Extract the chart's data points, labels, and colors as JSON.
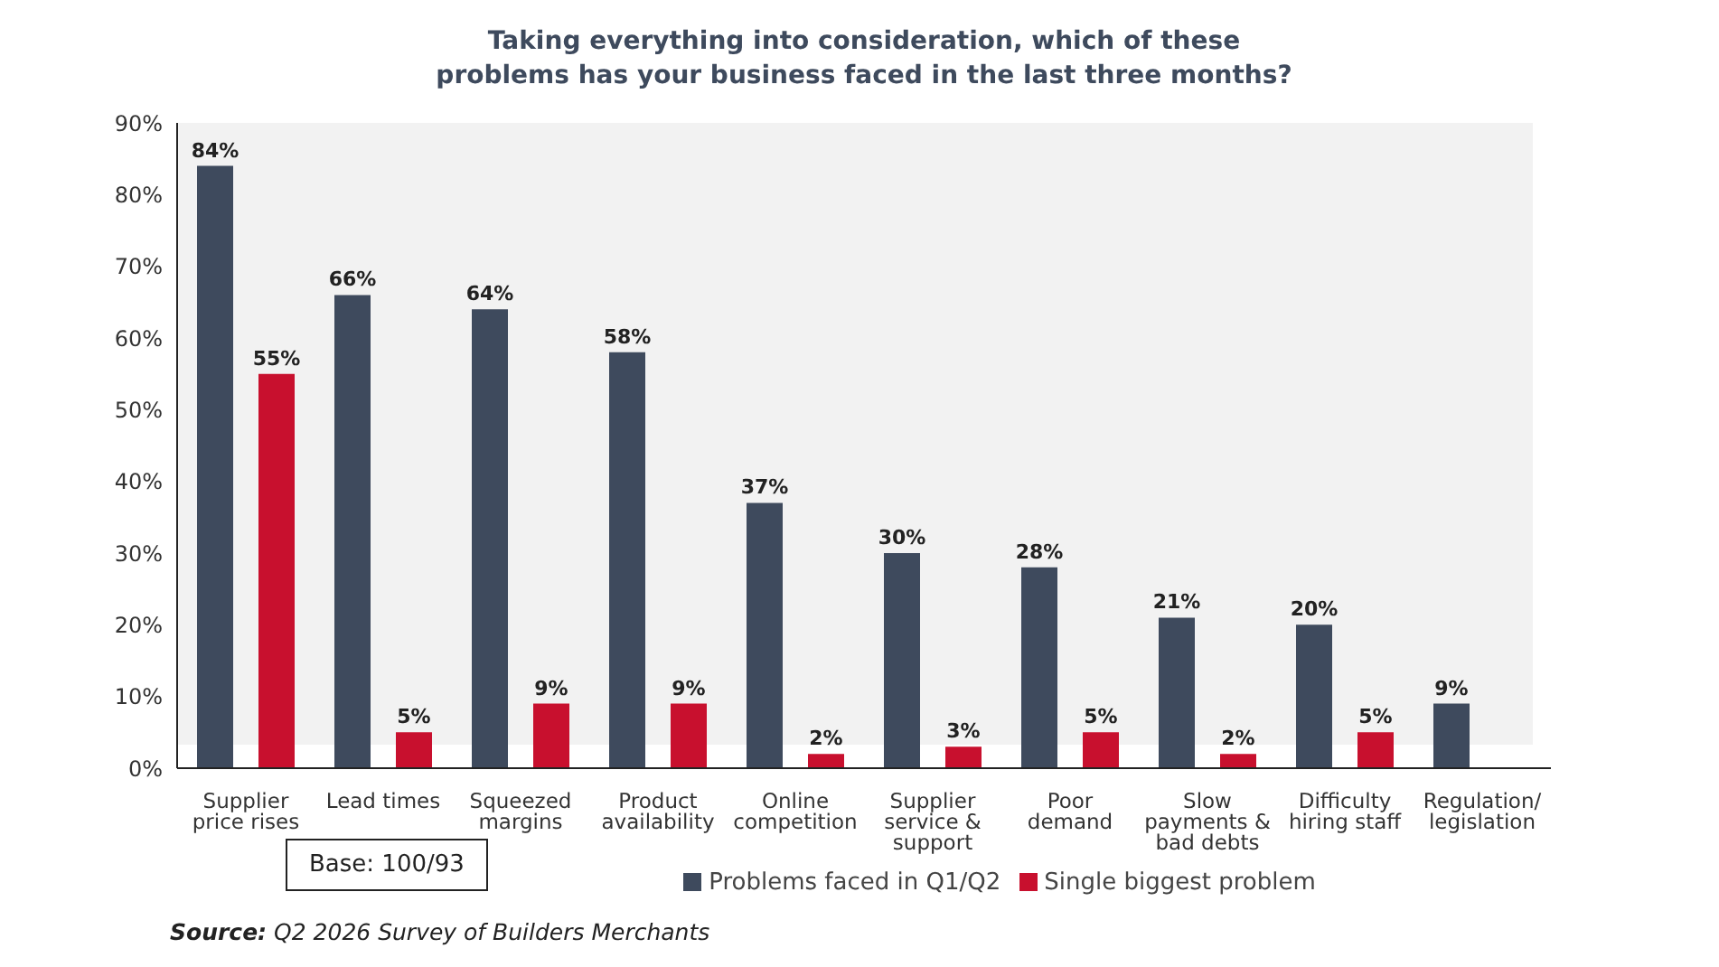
{
  "chart_data": {
    "type": "bar",
    "title": "Taking everything into consideration, which of these problems has your business faced in the last three months?",
    "categories": [
      "Supplier price rises",
      "Lead times",
      "Squeezed margins",
      "Product availability",
      "Online competition",
      "Supplier service & support",
      "Poor demand",
      "Slow payments & bad debts",
      "Difficulty hiring staff",
      "Regulation/ legislation"
    ],
    "series": [
      {
        "name": "Problems faced in Q1/Q2",
        "color": "#3e4a5d",
        "values": [
          84,
          66,
          64,
          58,
          37,
          30,
          28,
          21,
          20,
          9
        ],
        "value_labels": [
          "84%",
          "66%",
          "64%",
          "58%",
          "37%",
          "30%",
          "28%",
          "21%",
          "20%",
          "9%"
        ]
      },
      {
        "name": "Single biggest problem",
        "color": "#c8102e",
        "values": [
          55,
          5,
          9,
          9,
          2,
          3,
          5,
          2,
          5,
          null
        ],
        "value_labels": [
          "55%",
          "5%",
          "9%",
          "9%",
          "2%",
          "3%",
          "5%",
          "2%",
          "5%",
          null
        ]
      }
    ],
    "ylim": [
      0,
      90
    ],
    "yticks": [
      {
        "value": 0,
        "label": "0%"
      },
      {
        "value": 10,
        "label": "10%"
      },
      {
        "value": 20,
        "label": "20%"
      },
      {
        "value": 30,
        "label": "30%"
      },
      {
        "value": 40,
        "label": "40%"
      },
      {
        "value": 50,
        "label": "50%"
      },
      {
        "value": 60,
        "label": "60%"
      },
      {
        "value": 70,
        "label": "70%"
      },
      {
        "value": 80,
        "label": "80%"
      },
      {
        "value": 90,
        "label": "90%"
      }
    ],
    "legend": "bottom",
    "annotations": [
      "Base: 100/93",
      "Source: Q2 2026 Survey of Builders Merchants"
    ]
  }
}
